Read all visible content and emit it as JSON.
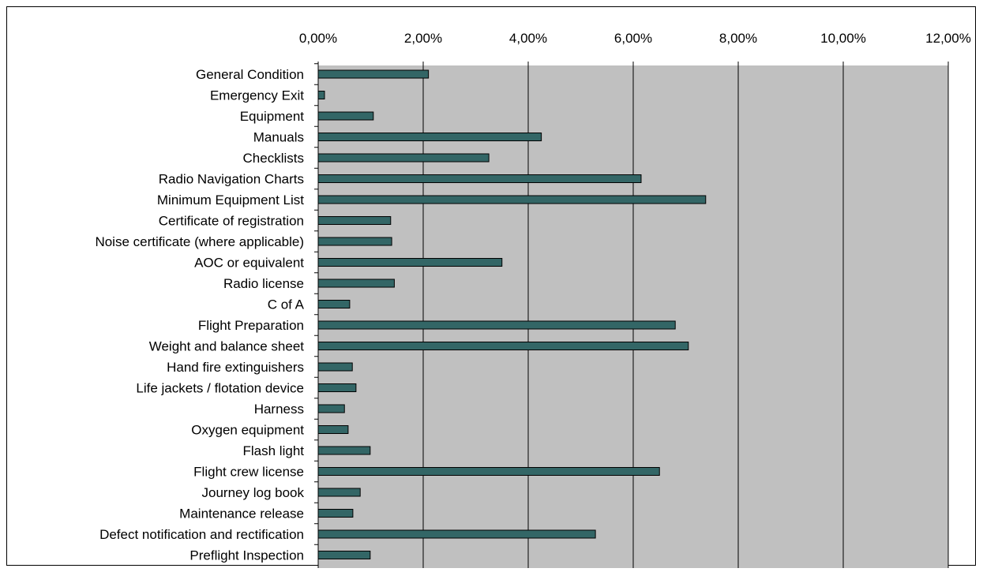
{
  "chart_data": {
    "type": "bar",
    "orientation": "horizontal",
    "x_axis_position": "top",
    "xlim": [
      0,
      12
    ],
    "x_ticks": [
      0,
      2,
      4,
      6,
      8,
      10,
      12
    ],
    "x_tick_labels": [
      "0,00%",
      "2,00%",
      "4,00%",
      "6,00%",
      "8,00%",
      "10,00%",
      "12,00%"
    ],
    "grid": "vertical-major",
    "plot_background": "#c0c0c0",
    "bar_color": "#336666",
    "title": "",
    "xlabel": "",
    "ylabel": "",
    "categories": [
      "General Condition",
      "Emergency Exit",
      "Equipment",
      "Manuals",
      "Checklists",
      "Radio Navigation Charts",
      "Minimum Equipment List",
      "Certificate of registration",
      "Noise certificate (where applicable)",
      "AOC or equivalent",
      "Radio license",
      "C of A",
      "Flight Preparation",
      "Weight and balance sheet",
      "Hand fire extinguishers",
      "Life jackets / flotation device",
      "Harness",
      "Oxygen equipment",
      "Flash light",
      "Flight crew license",
      "Journey log book",
      "Maintenance release",
      "Defect notification and rectification",
      "Preflight Inspection"
    ],
    "values": [
      2.1,
      0.12,
      1.05,
      4.25,
      3.25,
      6.15,
      7.38,
      1.38,
      1.4,
      3.5,
      1.45,
      0.6,
      6.8,
      7.05,
      0.65,
      0.72,
      0.5,
      0.57,
      0.99,
      6.5,
      0.8,
      0.66,
      5.28,
      0.99
    ]
  }
}
